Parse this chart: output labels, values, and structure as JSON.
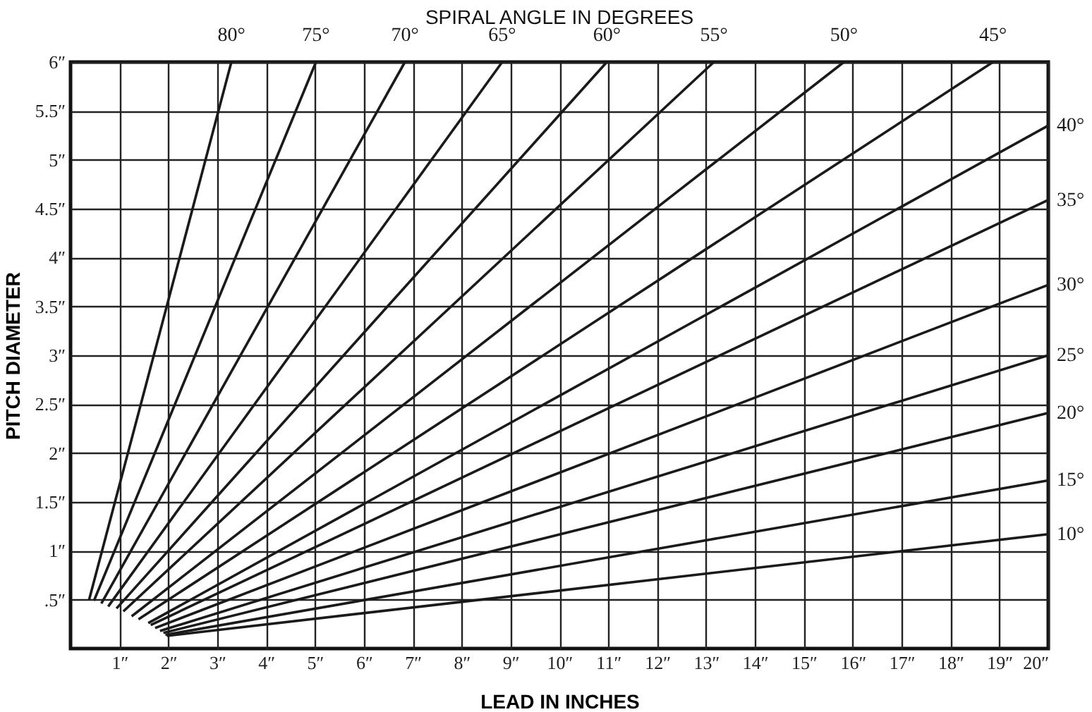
{
  "chart_data": {
    "type": "line",
    "title": "SPIRAL ANGLE IN DEGREES",
    "xlabel": "LEAD IN INCHES",
    "ylabel": "PITCH DIAMETER",
    "xlim": [
      0,
      20
    ],
    "ylim": [
      0,
      6
    ],
    "xticks": [
      {
        "value": 1,
        "label": "1″"
      },
      {
        "value": 2,
        "label": "2″"
      },
      {
        "value": 3,
        "label": "3″"
      },
      {
        "value": 4,
        "label": "4″"
      },
      {
        "value": 5,
        "label": "5″"
      },
      {
        "value": 6,
        "label": "6″"
      },
      {
        "value": 7,
        "label": "7″"
      },
      {
        "value": 8,
        "label": "8″"
      },
      {
        "value": 9,
        "label": "9″"
      },
      {
        "value": 10,
        "label": "10″"
      },
      {
        "value": 11,
        "label": "11″"
      },
      {
        "value": 12,
        "label": "12″"
      },
      {
        "value": 13,
        "label": "13″"
      },
      {
        "value": 14,
        "label": "14″"
      },
      {
        "value": 15,
        "label": "15″"
      },
      {
        "value": 16,
        "label": "16″"
      },
      {
        "value": 17,
        "label": "17″"
      },
      {
        "value": 18,
        "label": "18″"
      },
      {
        "value": 19,
        "label": "19″"
      },
      {
        "value": 20,
        "label": "20″"
      }
    ],
    "yticks": [
      {
        "value": 0.5,
        "label": ".5″"
      },
      {
        "value": 1,
        "label": "1″"
      },
      {
        "value": 1.5,
        "label": "1.5″"
      },
      {
        "value": 2,
        "label": "2″"
      },
      {
        "value": 2.5,
        "label": "2.5″"
      },
      {
        "value": 3,
        "label": "3″"
      },
      {
        "value": 3.5,
        "label": "3.5″"
      },
      {
        "value": 4,
        "label": "4″"
      },
      {
        "value": 4.5,
        "label": "4.5″"
      },
      {
        "value": 5,
        "label": "5″"
      },
      {
        "value": 5.5,
        "label": "5.5″"
      },
      {
        "value": 6,
        "label": "6″"
      }
    ],
    "grid": true,
    "marker": "none",
    "line_style": "solid",
    "legend": false,
    "series": [
      {
        "name": "80°",
        "color": "#1a1a1a",
        "x": [
          0.38,
          3.29
        ],
        "values": [
          0.5,
          6
        ]
      },
      {
        "name": "75°",
        "color": "#1a1a1a",
        "x": [
          0.48,
          5.02
        ],
        "values": [
          0.49,
          6
        ]
      },
      {
        "name": "70°",
        "color": "#1a1a1a",
        "x": [
          0.63,
          6.84
        ],
        "values": [
          0.46,
          6
        ]
      },
      {
        "name": "65°",
        "color": "#1a1a1a",
        "x": [
          0.77,
          8.83
        ],
        "values": [
          0.43,
          6
        ]
      },
      {
        "name": "60°",
        "color": "#1a1a1a",
        "x": [
          0.94,
          10.97
        ],
        "values": [
          0.41,
          6
        ]
      },
      {
        "name": "55°",
        "color": "#1a1a1a",
        "x": [
          1.08,
          13.16
        ],
        "values": [
          0.38,
          6
        ]
      },
      {
        "name": "50°",
        "color": "#1a1a1a",
        "x": [
          1.25,
          15.82
        ],
        "values": [
          0.33,
          6
        ]
      },
      {
        "name": "45°",
        "color": "#1a1a1a",
        "x": [
          1.39,
          18.87
        ],
        "values": [
          0.3,
          6
        ]
      },
      {
        "name": "40°",
        "color": "#1a1a1a",
        "x": [
          1.59,
          20
        ],
        "values": [
          0.26,
          5.35
        ]
      },
      {
        "name": "35°",
        "color": "#1a1a1a",
        "x": [
          1.64,
          20
        ],
        "values": [
          0.24,
          4.59
        ]
      },
      {
        "name": "30°",
        "color": "#1a1a1a",
        "x": [
          1.73,
          20
        ],
        "values": [
          0.21,
          3.72
        ]
      },
      {
        "name": "25°",
        "color": "#1a1a1a",
        "x": [
          1.83,
          20
        ],
        "values": [
          0.18,
          3.0
        ]
      },
      {
        "name": "20°",
        "color": "#1a1a1a",
        "x": [
          1.9,
          20
        ],
        "values": [
          0.16,
          2.41
        ]
      },
      {
        "name": "15°",
        "color": "#1a1a1a",
        "x": [
          1.94,
          20
        ],
        "values": [
          0.14,
          1.72
        ]
      },
      {
        "name": "10°",
        "color": "#1a1a1a",
        "x": [
          1.97,
          20
        ],
        "values": [
          0.13,
          1.17
        ]
      }
    ]
  }
}
